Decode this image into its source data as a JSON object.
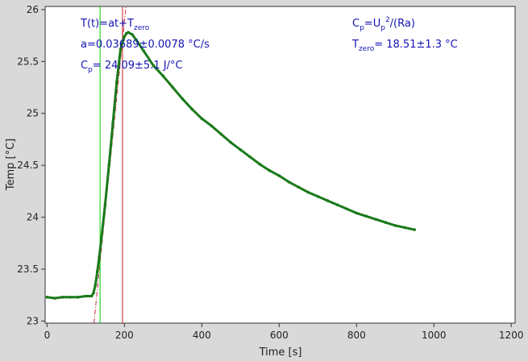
{
  "chart_data": {
    "type": "scatter",
    "xlabel": "Time [s]",
    "ylabel": "Temp [°C]",
    "xlim": [
      -5,
      1210
    ],
    "ylim": [
      22.98,
      26.03
    ],
    "x_ticks": [
      0,
      200,
      400,
      600,
      800,
      1000,
      1200
    ],
    "y_ticks": [
      23,
      23.5,
      24,
      24.5,
      25,
      25.5,
      26
    ],
    "grid": false,
    "colors": {
      "series": "#1a7a1a",
      "fit": "#c8283c",
      "vline_green": "#00c800",
      "vline_red": "#c81e28",
      "annotation": "#1414b4",
      "plot_bg": "#ffffff",
      "page_bg": "#d9d9d9"
    },
    "series": [
      {
        "x": [
          0,
          20,
          40,
          60,
          80,
          100,
          115,
          120,
          125,
          130,
          135,
          140,
          150,
          160,
          170,
          180,
          190,
          200,
          205,
          210,
          220,
          230,
          250,
          275,
          300,
          325,
          350,
          375,
          400,
          425,
          450,
          475,
          500,
          525,
          550,
          575,
          600,
          625,
          650,
          675,
          700,
          725,
          750,
          775,
          800,
          825,
          850,
          875,
          900,
          925,
          950
        ],
        "y": [
          23.23,
          23.22,
          23.23,
          23.23,
          23.23,
          23.24,
          23.24,
          23.27,
          23.35,
          23.48,
          23.62,
          23.78,
          24.12,
          24.5,
          24.9,
          25.3,
          25.62,
          25.74,
          25.77,
          25.78,
          25.76,
          25.71,
          25.6,
          25.46,
          25.36,
          25.25,
          25.14,
          25.04,
          24.95,
          24.88,
          24.8,
          24.72,
          24.65,
          24.58,
          24.51,
          24.45,
          24.4,
          24.34,
          24.29,
          24.24,
          24.2,
          24.16,
          24.12,
          24.08,
          24.04,
          24.01,
          23.98,
          23.95,
          23.92,
          23.9,
          23.88
        ]
      }
    ],
    "fit_line": {
      "slope": 0.03689,
      "intercept": 18.51
    },
    "vertical_lines": [
      {
        "x": 137,
        "color": "green"
      },
      {
        "x": 195,
        "color": "red"
      }
    ],
    "annotations": {
      "formula_left": {
        "base": "T(t)=at+T",
        "sub": "zero"
      },
      "a_value": "a=0.03689±0.0078 °C/s",
      "cp_value": {
        "base": "C",
        "sub": "p",
        "rest": "= 24.09±5.1 J/°C"
      },
      "formula_right": {
        "base": "C",
        "sub": "p",
        "mid": "=U",
        "sub2": "p",
        "sup": "2",
        "rest": "/(Ra)"
      },
      "tzero_value": {
        "base": "T",
        "sub": "zero",
        "rest": "= 18.51±1.3 °C"
      }
    }
  }
}
